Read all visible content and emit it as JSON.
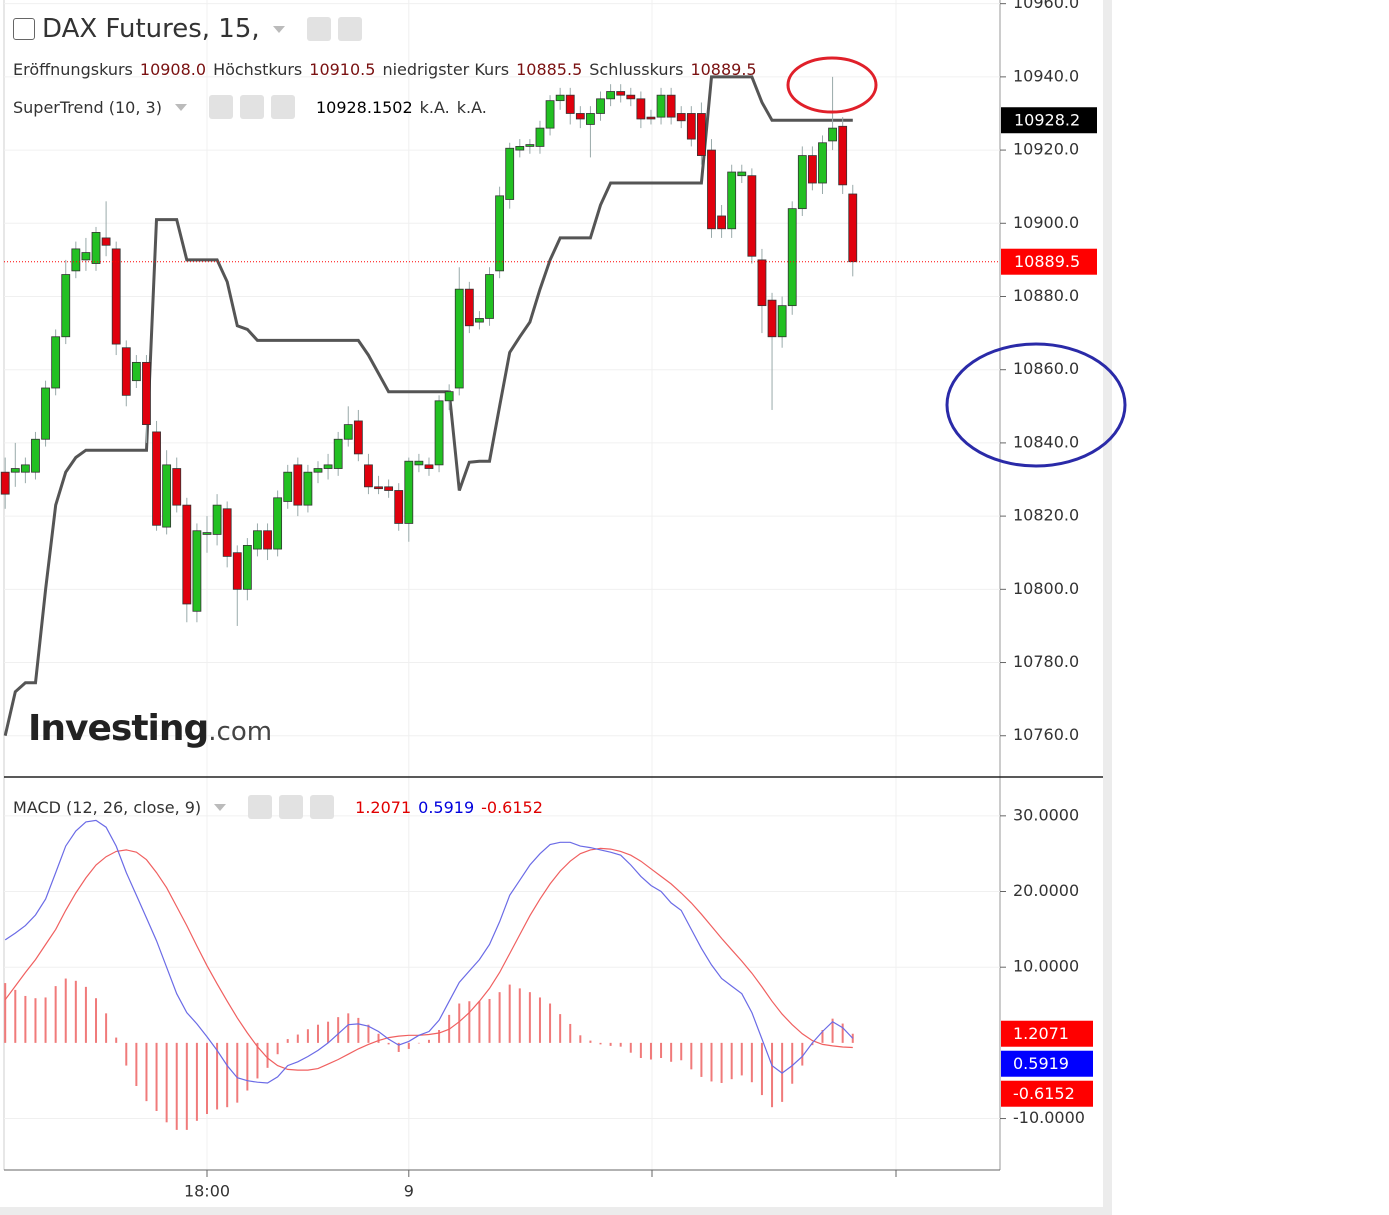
{
  "chart_data": [
    {
      "type": "candlestick",
      "title": "DAX Futures, 15,",
      "legend": [
        {
          "name": "Eröffnungskurs",
          "value": "10908.0"
        },
        {
          "name": "Höchstkurs",
          "value": "10910.5"
        },
        {
          "name": "niedrigster Kurs",
          "value": "10885.5"
        },
        {
          "name": "Schlusskurs",
          "value": "10889.5"
        }
      ],
      "legend_value_color": "#7a1111",
      "watermark": {
        "brand": "Investing",
        "suffix": ".com"
      },
      "up_color": "#22c022",
      "down_color": "#e0000d",
      "grid": true,
      "ylim": [
        10749,
        10961
      ],
      "yticks": [
        {
          "value": 10760,
          "label": "10760.0"
        },
        {
          "value": 10780,
          "label": "10780.0"
        },
        {
          "value": 10800,
          "label": "10800.0"
        },
        {
          "value": 10820,
          "label": "10820.0"
        },
        {
          "value": 10840,
          "label": "10840.0"
        },
        {
          "value": 10860,
          "label": "10860.0"
        },
        {
          "value": 10880,
          "label": "10880.0"
        },
        {
          "value": 10900,
          "label": "10900.0"
        },
        {
          "value": 10920,
          "label": "10920.0"
        },
        {
          "value": 10940,
          "label": "10940.0"
        },
        {
          "value": 10960,
          "label": "10960.0"
        }
      ],
      "open": [
        10832,
        10832,
        10832,
        10832,
        10841,
        10855,
        10869,
        10887,
        10890,
        10889,
        10896,
        10893,
        10866,
        10857,
        10862,
        10843,
        10817,
        10833,
        10823,
        10794,
        10815,
        10815,
        10822,
        10810,
        10800,
        10811,
        10816,
        10811,
        10824,
        10834,
        10823,
        10832,
        10833,
        10833,
        10841,
        10846,
        10834,
        10828,
        10828,
        10827,
        10818,
        10834,
        10834,
        10834,
        10851.5,
        10855,
        10882,
        10873,
        10874,
        10887,
        10906.5,
        10920,
        10921,
        10921,
        10926,
        10933.5,
        10935,
        10930,
        10927,
        10930,
        10934,
        10936,
        10935,
        10934,
        10929,
        10929,
        10935,
        10930,
        10930,
        10930,
        10920,
        10902,
        10898.5,
        10913,
        10913,
        10890,
        10879,
        10869,
        10877.5,
        10904,
        10918.5,
        10911,
        10922.5,
        10926.5,
        10908
      ],
      "high": [
        10836,
        10840,
        10836,
        10843,
        10857,
        10871,
        10890,
        10895,
        10896,
        10899,
        10906,
        10895,
        10868,
        10864,
        10864,
        10846,
        10838,
        10836,
        10825,
        10818,
        10820,
        10826,
        10824,
        10812,
        10814,
        10818,
        10818,
        10827,
        10834,
        10836,
        10834,
        10835,
        10837,
        10843,
        10850,
        10849,
        10837,
        10831,
        10830,
        10829,
        10836,
        10837,
        10836,
        10853,
        10856,
        10888,
        10884,
        10876,
        10888,
        10910,
        10922,
        10923,
        10923,
        10928,
        10935,
        10937,
        10937,
        10932,
        10932,
        10936,
        10938,
        10938,
        10937,
        10936,
        10931,
        10937,
        10937,
        10932,
        10932,
        10933,
        10923,
        10905,
        10916,
        10916,
        10915,
        10893,
        10881,
        10880,
        10906,
        10921,
        10921,
        10924,
        10940,
        10929,
        10910.5
      ],
      "low": [
        10822,
        10828,
        10829,
        10830,
        10839,
        10853,
        10867,
        10885,
        10887,
        10887,
        10891,
        10864,
        10850,
        10855,
        10840,
        10816,
        10815,
        10821,
        10791,
        10791,
        10810,
        10812,
        10806,
        10790,
        10797,
        10809,
        10808,
        10809,
        10822,
        10820,
        10821,
        10829,
        10830,
        10831,
        10839,
        10835,
        10826,
        10826,
        10825,
        10816,
        10813,
        10832,
        10831,
        10832,
        10849,
        10853,
        10870,
        10871,
        10872,
        10885,
        10904,
        10918,
        10919,
        10919,
        10924,
        10931,
        10927,
        10926,
        10918,
        10928,
        10932,
        10933,
        10932,
        10926,
        10927,
        10927,
        10927,
        10926,
        10921,
        10916,
        10896,
        10896,
        10896,
        10911,
        10889,
        10870,
        10849,
        10866,
        10875,
        10902,
        10909,
        10908,
        10920,
        10908,
        10885.5
      ],
      "close": [
        10826,
        10833,
        10834,
        10841,
        10855,
        10869,
        10886,
        10893,
        10892,
        10897.5,
        10894,
        10867,
        10853,
        10862,
        10845,
        10817.5,
        10834,
        10823,
        10796,
        10816,
        10815.5,
        10823,
        10809,
        10800,
        10812,
        10816,
        10811,
        10825,
        10832,
        10823,
        10832,
        10833,
        10834,
        10841,
        10845,
        10837,
        10828,
        10827.5,
        10827,
        10818,
        10835,
        10835,
        10833,
        10851.5,
        10854,
        10882,
        10872,
        10874,
        10886,
        10907.5,
        10920.5,
        10921,
        10921.5,
        10926,
        10933.5,
        10935,
        10930,
        10928.5,
        10930,
        10934,
        10936,
        10935,
        10934,
        10928.5,
        10928.5,
        10935,
        10929,
        10928,
        10923,
        10918.5,
        10898.5,
        10898.5,
        10914,
        10914,
        10891,
        10877.5,
        10869,
        10877.5,
        10904,
        10918.5,
        10911,
        10922,
        10926,
        10910.5,
        10889.5
      ],
      "supertrend": {
        "name": "SuperTrend (10, 3)",
        "color": "#555555",
        "legend_values": [
          "10928.1502",
          "k.A.",
          "k.A."
        ],
        "values": [
          10760,
          10772,
          10774.5,
          10774.5,
          10800,
          10823,
          10832,
          10836,
          10838,
          10838,
          10838,
          10838,
          10838,
          10838,
          10838,
          10901,
          10901,
          10901,
          10890,
          10890,
          10890,
          10890,
          10884,
          10872,
          10871,
          10868,
          10868,
          10868,
          10868,
          10868,
          10868,
          10868,
          10868,
          10868,
          10868,
          10868,
          10864,
          10859,
          10854,
          10854,
          10854,
          10854,
          10854,
          10854,
          10854,
          10827,
          10834.7,
          10835,
          10835,
          10850,
          10864.7,
          10869,
          10873,
          10882,
          10890,
          10896,
          10896,
          10896,
          10896,
          10905,
          10911,
          10911,
          10911,
          10911,
          10911,
          10911,
          10911,
          10911,
          10911,
          10911,
          10940,
          10940,
          10940,
          10940,
          10940,
          10933,
          10928.15,
          10928.15,
          10928.15,
          10928.15,
          10928.15,
          10928.15,
          10928.15,
          10928.15,
          10928.15
        ]
      },
      "last_labels": [
        {
          "value": 10928.15,
          "label": "10928.2",
          "color": "#000000"
        },
        {
          "value": 10889.5,
          "label": "10889.5",
          "color": "#ff0000"
        }
      ]
    },
    {
      "type": "macd",
      "title": "MACD (12, 26, close, 9)",
      "legend_values": [
        {
          "label": "1.2071",
          "color": "#e00000"
        },
        {
          "label": "0.5919",
          "color": "#0000dd"
        },
        {
          "label": "-0.6152",
          "color": "#e00000"
        }
      ],
      "categories": [
        null,
        null,
        null,
        null,
        null,
        null,
        null,
        null,
        null,
        null,
        null,
        null,
        null,
        null,
        null,
        null,
        null,
        null,
        null,
        null,
        "18:00",
        null,
        null,
        null,
        null,
        null,
        null,
        null,
        null,
        null,
        null,
        null,
        null,
        null,
        null,
        null,
        null,
        null,
        null,
        null,
        "9",
        null,
        null,
        null,
        null,
        null,
        null,
        null,
        null,
        null,
        null,
        null,
        null,
        null,
        null,
        null,
        null,
        null,
        null,
        null,
        null,
        null,
        null,
        null,
        null,
        null,
        null,
        null,
        null,
        null,
        null,
        null,
        null,
        null,
        null,
        null,
        null,
        null,
        null,
        null,
        null,
        null,
        null,
        null,
        null
      ],
      "ylim": [
        -16.8,
        35
      ],
      "grid": true,
      "yticks": [
        {
          "value": -10,
          "label": "-10.0000"
        },
        {
          "value": 10,
          "label": "10.0000"
        },
        {
          "value": 20,
          "label": "20.0000"
        },
        {
          "value": 30,
          "label": "30.0000"
        }
      ],
      "histogram": {
        "color": "#f07a7a",
        "values": [
          7.9,
          7,
          6.2,
          5.9,
          6,
          7.5,
          8.5,
          8.2,
          7.4,
          5.9,
          3.9,
          0.7,
          -3,
          -5.7,
          -7.7,
          -9,
          -10.5,
          -11.5,
          -11.5,
          -10.3,
          -9.4,
          -8.8,
          -8.5,
          -7.9,
          -6.3,
          -4.7,
          -3.3,
          -1.5,
          0.5,
          1.1,
          1.8,
          2.4,
          2.8,
          3.4,
          3.9,
          3.3,
          2.4,
          1.2,
          -0.2,
          -1.2,
          -0.8,
          0,
          0.4,
          1.7,
          3.7,
          5.2,
          5.5,
          5.5,
          5.8,
          6.7,
          7.7,
          7.2,
          6.7,
          6,
          5.2,
          3.8,
          2.5,
          1,
          0.3,
          -0.2,
          -0.4,
          -0.5,
          -1.3,
          -2,
          -2.2,
          -2,
          -2.5,
          -2.3,
          -3.5,
          -4.5,
          -5.1,
          -5.3,
          -4.8,
          -4.3,
          -5.2,
          -6.9,
          -8.5,
          -7.8,
          -5.4,
          -3,
          -0.3,
          1.7,
          3.2,
          2.55,
          1.2071
        ]
      },
      "macd": {
        "color": "#6b6be6",
        "values": [
          13.6,
          14.5,
          15.5,
          16.9,
          19,
          22.5,
          26,
          28,
          29.2,
          29.4,
          28.5,
          26,
          22.5,
          19.5,
          16.5,
          13.5,
          10,
          6.5,
          4,
          2.5,
          0.8,
          -1,
          -3,
          -4.6,
          -5,
          -5.2,
          -5.3,
          -4.5,
          -3,
          -2.5,
          -1.8,
          -1,
          0,
          1.2,
          2.4,
          2.5,
          2.2,
          1.5,
          0.5,
          -0.3,
          0.2,
          1,
          1.5,
          3,
          5.5,
          8,
          9.5,
          11,
          13,
          16,
          19.5,
          21.5,
          23.5,
          25,
          26.2,
          26.5,
          26.5,
          26,
          25.8,
          25.5,
          25.2,
          24.8,
          23.5,
          22,
          20.8,
          20,
          18.5,
          17.5,
          15,
          12.5,
          10.3,
          8.5,
          7.5,
          6.5,
          4,
          0.5,
          -3,
          -4,
          -3,
          -1.8,
          0,
          1.5,
          2.8,
          2,
          0.5919
        ]
      },
      "signal": {
        "color": "#f06060",
        "values": [
          5.7,
          7.5,
          9.3,
          11,
          13,
          15,
          17.5,
          19.8,
          21.8,
          23.5,
          24.6,
          25.3,
          25.5,
          25.2,
          24.2,
          22.5,
          20.5,
          18,
          15.5,
          12.8,
          10.2,
          7.8,
          5.5,
          3.3,
          1.3,
          -0.5,
          -2,
          -3,
          -3.5,
          -3.6,
          -3.6,
          -3.4,
          -2.8,
          -2.2,
          -1.5,
          -0.8,
          -0.2,
          0.3,
          0.7,
          0.9,
          1,
          1,
          1.1,
          1.3,
          1.8,
          2.8,
          4,
          5.5,
          7.2,
          9.3,
          11.8,
          14.3,
          16.8,
          19,
          21,
          22.7,
          24,
          25,
          25.5,
          25.7,
          25.6,
          25.3,
          24.8,
          24,
          23,
          22,
          21,
          19.8,
          18.5,
          17,
          15.4,
          13.8,
          12.3,
          10.8,
          9.2,
          7.4,
          5.5,
          3.8,
          2.4,
          1.2,
          0.3,
          -0.2,
          -0.4,
          -0.55,
          -0.6152
        ]
      },
      "last_labels": [
        {
          "value": 1.2071,
          "label": "1.2071",
          "color": "#ff0000"
        },
        {
          "value": 0.5919,
          "label": "0.5919",
          "color": "#0000ff"
        },
        {
          "value": -0.6152,
          "label": "-0.6152",
          "color": "#ff0000"
        }
      ]
    }
  ]
}
